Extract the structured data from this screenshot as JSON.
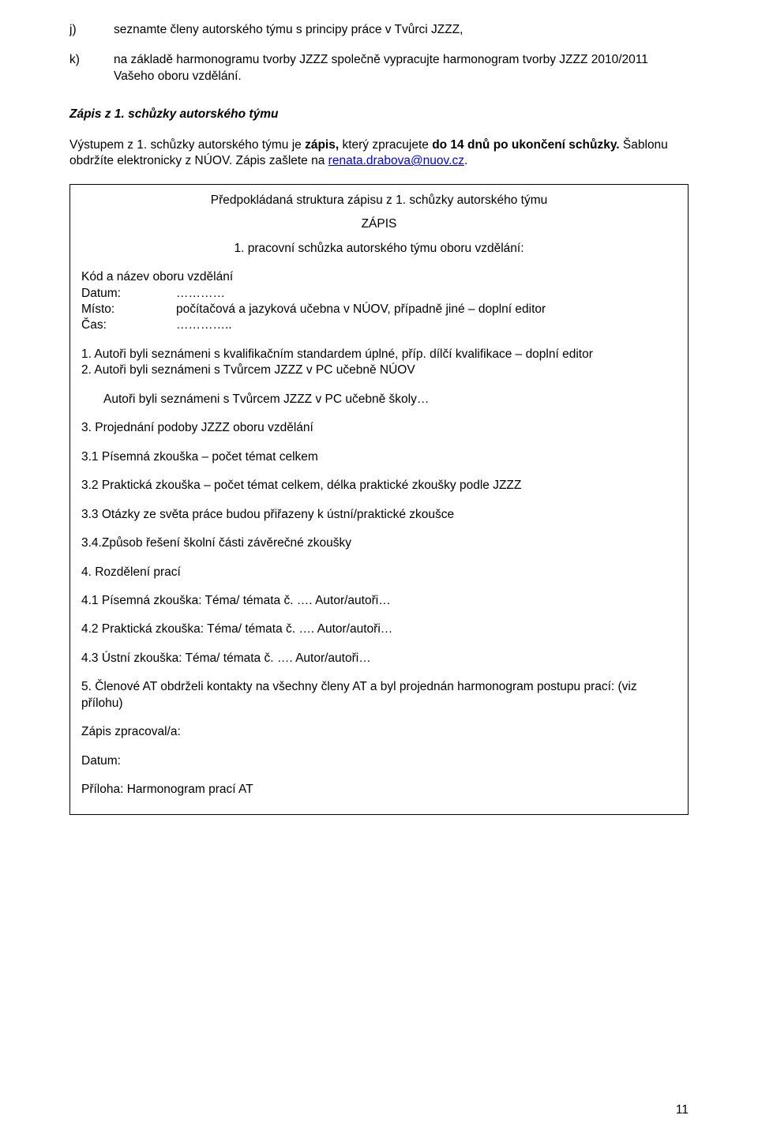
{
  "item_j": {
    "marker": "j)",
    "text": "seznamte členy autorského týmu s principy práce v Tvůrci JZZZ,"
  },
  "item_k": {
    "marker": "k)",
    "text": "na základě harmonogramu tvorby JZZZ společně vypracujte harmonogram tvorby JZZZ 2010/2011 Vašeho oboru vzdělání."
  },
  "heading": "Zápis z 1. schůzky autorského týmu",
  "intro_pre": "Výstupem z 1. schůzky autorského týmu je ",
  "intro_bold": "zápis,",
  "intro_mid": " který zpracujete ",
  "intro_bold2": "do 14 dnů po ukončení schůzky.",
  "intro_post": " Šablonu obdržíte elektronicky z NÚOV. Zápis zašlete na ",
  "intro_link": "renata.drabova@nuov.cz",
  "intro_dot": ".",
  "box": {
    "l1": "Předpokládaná struktura zápisu z 1. schůzky autorského týmu",
    "l2": "ZÁPIS",
    "l3": "1. pracovní schůzka autorského týmu oboru vzdělání:",
    "kod": "Kód a název oboru vzdělání",
    "datum_lbl": "Datum:",
    "datum_val": "…………",
    "misto_lbl": "Místo:",
    "misto_val": "počítačová a jazyková učebna v NÚOV, případně jiné – doplní editor",
    "cas_lbl": "Čas:",
    "cas_val": "…………..",
    "i1": "1. Autoři byli seznámeni s kvalifikačním standardem úplné, příp. dílčí kvalifikace – doplní editor",
    "i2": "2. Autoři byli seznámeni s Tvůrcem JZZZ v PC učebně NÚOV",
    "i2a": "Autoři byli seznámeni s Tvůrcem JZZZ v PC učebně školy…",
    "i3": "3. Projednání podoby JZZZ oboru vzdělání",
    "i31": "3.1 Písemná zkouška – počet témat celkem",
    "i32": "3.2 Praktická zkouška – počet témat celkem, délka praktické zkoušky podle JZZZ",
    "i33": "3.3 Otázky ze světa práce budou přiřazeny k ústní/praktické zkoušce",
    "i34": "3.4.Způsob řešení školní části závěrečné zkoušky",
    "i4": "4. Rozdělení prací",
    "i41": "4.1 Písemná zkouška: Téma/ témata č. …. Autor/autoři…",
    "i42": "4.2 Praktická zkouška: Téma/ témata č. …. Autor/autoři…",
    "i43": "4.3 Ústní zkouška: Téma/ témata č. …. Autor/autoři…",
    "i5": "5. Členové AT obdrželi kontakty na všechny členy AT a byl projednán harmonogram postupu prací: (viz přílohu)",
    "zprac": "Zápis zpracoval/a:",
    "datum2": "Datum:",
    "priloha": "Příloha: Harmonogram prací AT"
  },
  "pagenum": "11"
}
